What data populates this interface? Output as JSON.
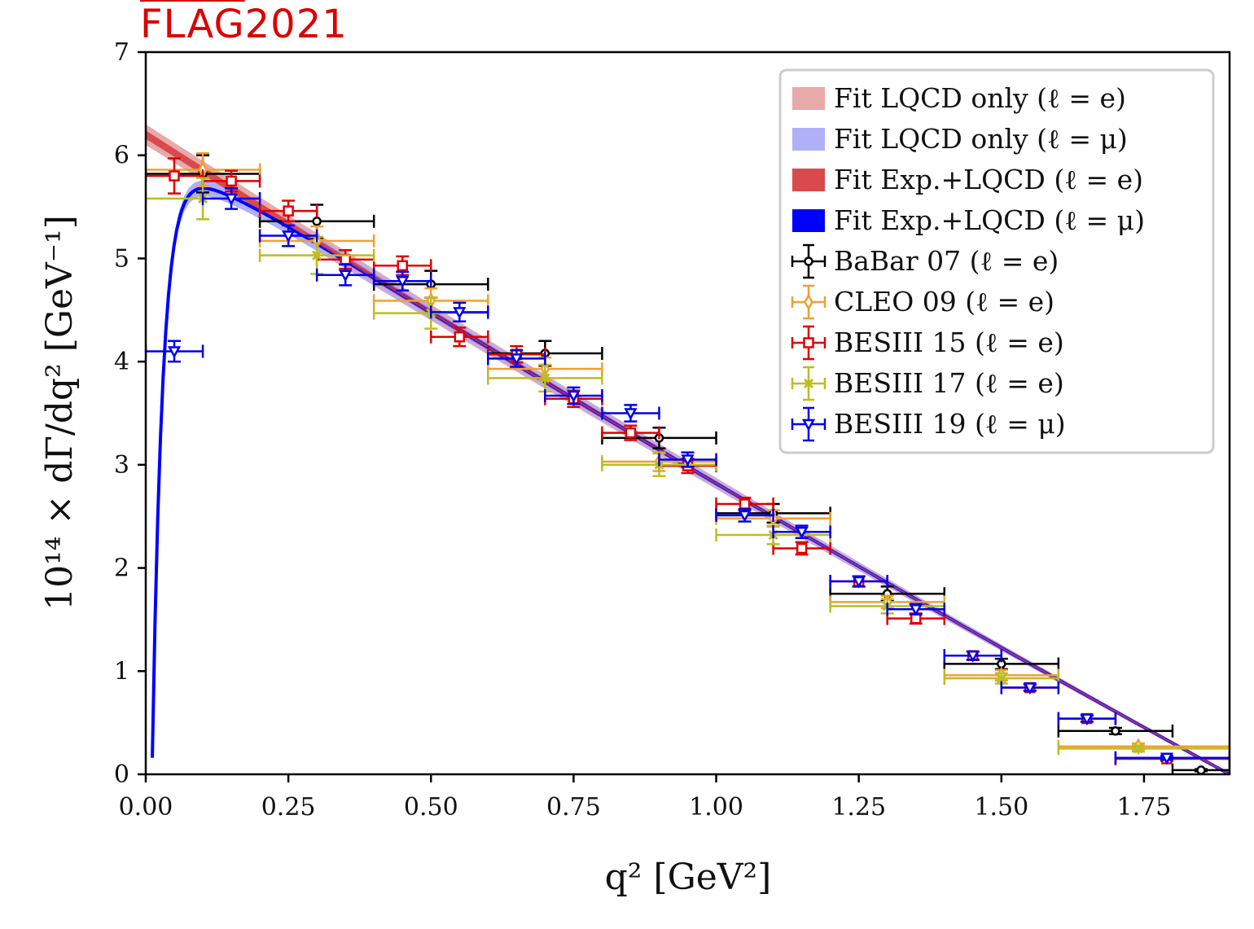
{
  "brand": {
    "name": "FLAG",
    "year": "2021",
    "color": "#dd0000"
  },
  "chart_data": {
    "type": "scatter",
    "title": "",
    "xlabel": "q² [GeV²]",
    "ylabel": "10¹⁴ × dΓ/dq² [GeV⁻¹]",
    "xlim": [
      0.0,
      1.9
    ],
    "ylim": [
      0,
      7
    ],
    "x_ticks": [
      0.0,
      0.25,
      0.5,
      0.75,
      1.0,
      1.25,
      1.5,
      1.75
    ],
    "x_tick_labels": [
      "0.00",
      "0.25",
      "0.50",
      "0.75",
      "1.00",
      "1.25",
      "1.50",
      "1.75"
    ],
    "y_ticks": [
      0,
      1,
      2,
      3,
      4,
      5,
      6,
      7
    ],
    "y_tick_labels": [
      "0",
      "1",
      "2",
      "3",
      "4",
      "5",
      "6",
      "7"
    ],
    "grid": false,
    "legend_position": "top-right",
    "bands": [
      {
        "name": "Fit LQCD only (ℓ = e)",
        "color": "#e8a9aa",
        "x": [
          0.0,
          1.9
        ],
        "y_center": [
          6.2,
          0.0
        ],
        "half_width": 0.1,
        "lepton": "e"
      },
      {
        "name": "Fit LQCD only (ℓ = μ)",
        "color": "#afb0f8",
        "lepton": "mu",
        "half_width": 0.08
      },
      {
        "name": "Fit Exp.+LQCD (ℓ = e)",
        "color": "#d94a4c",
        "x": [
          0.0,
          1.9
        ],
        "y_center": [
          6.2,
          0.0
        ],
        "half_width": 0.04,
        "lepton": "e"
      },
      {
        "name": "Fit Exp.+LQCD (ℓ = μ)",
        "color": "#0000ff",
        "lepton": "mu",
        "half_width": 0.025
      }
    ],
    "series": [
      {
        "name": "BaBar 07 (ℓ = e)",
        "color": "#000000",
        "marker": "circle",
        "points": [
          {
            "x": 0.1,
            "xlo": 0.0,
            "xhi": 0.2,
            "y": 5.82,
            "err": 0.18
          },
          {
            "x": 0.3,
            "xlo": 0.2,
            "xhi": 0.4,
            "y": 5.36,
            "err": 0.16
          },
          {
            "x": 0.5,
            "xlo": 0.4,
            "xhi": 0.6,
            "y": 4.75,
            "err": 0.13
          },
          {
            "x": 0.7,
            "xlo": 0.6,
            "xhi": 0.8,
            "y": 4.08,
            "err": 0.12
          },
          {
            "x": 0.9,
            "xlo": 0.8,
            "xhi": 1.0,
            "y": 3.26,
            "err": 0.1
          },
          {
            "x": 1.1,
            "xlo": 1.0,
            "xhi": 1.2,
            "y": 2.53,
            "err": 0.09
          },
          {
            "x": 1.3,
            "xlo": 1.2,
            "xhi": 1.4,
            "y": 1.75,
            "err": 0.07
          },
          {
            "x": 1.5,
            "xlo": 1.4,
            "xhi": 1.6,
            "y": 1.07,
            "err": 0.05
          },
          {
            "x": 1.7,
            "xlo": 1.6,
            "xhi": 1.8,
            "y": 0.42,
            "err": 0.03
          },
          {
            "x": 1.85,
            "xlo": 1.8,
            "xhi": 1.9,
            "y": 0.04,
            "err": 0.01
          }
        ]
      },
      {
        "name": "CLEO 09 (ℓ = e)",
        "color": "#f0a030",
        "marker": "diamond",
        "points": [
          {
            "x": 0.1,
            "xlo": 0.0,
            "xhi": 0.2,
            "y": 5.86,
            "err": 0.16
          },
          {
            "x": 0.3,
            "xlo": 0.2,
            "xhi": 0.4,
            "y": 5.17,
            "err": 0.14
          },
          {
            "x": 0.5,
            "xlo": 0.4,
            "xhi": 0.6,
            "y": 4.59,
            "err": 0.12
          },
          {
            "x": 0.7,
            "xlo": 0.6,
            "xhi": 0.8,
            "y": 3.93,
            "err": 0.11
          },
          {
            "x": 0.9,
            "xlo": 0.8,
            "xhi": 1.0,
            "y": 3.03,
            "err": 0.09
          },
          {
            "x": 1.1,
            "xlo": 1.0,
            "xhi": 1.2,
            "y": 2.48,
            "err": 0.08
          },
          {
            "x": 1.3,
            "xlo": 1.2,
            "xhi": 1.4,
            "y": 1.67,
            "err": 0.06
          },
          {
            "x": 1.5,
            "xlo": 1.4,
            "xhi": 1.6,
            "y": 0.96,
            "err": 0.05
          },
          {
            "x": 1.74,
            "xlo": 1.6,
            "xhi": 1.9,
            "y": 0.27,
            "err": 0.03
          }
        ]
      },
      {
        "name": "BESIII 15 (ℓ = e)",
        "color": "#e00000",
        "marker": "square",
        "points": [
          {
            "x": 0.05,
            "xlo": 0.0,
            "xhi": 0.1,
            "y": 5.8,
            "err": 0.17
          },
          {
            "x": 0.15,
            "xlo": 0.1,
            "xhi": 0.2,
            "y": 5.75,
            "err": 0.1
          },
          {
            "x": 0.25,
            "xlo": 0.2,
            "xhi": 0.3,
            "y": 5.46,
            "err": 0.1
          },
          {
            "x": 0.35,
            "xlo": 0.3,
            "xhi": 0.4,
            "y": 4.99,
            "err": 0.09
          },
          {
            "x": 0.45,
            "xlo": 0.4,
            "xhi": 0.5,
            "y": 4.93,
            "err": 0.09
          },
          {
            "x": 0.55,
            "xlo": 0.5,
            "xhi": 0.6,
            "y": 4.24,
            "err": 0.09
          },
          {
            "x": 0.65,
            "xlo": 0.6,
            "xhi": 0.7,
            "y": 4.07,
            "err": 0.08
          },
          {
            "x": 0.75,
            "xlo": 0.7,
            "xhi": 0.8,
            "y": 3.64,
            "err": 0.08
          },
          {
            "x": 0.85,
            "xlo": 0.8,
            "xhi": 0.9,
            "y": 3.31,
            "err": 0.07
          },
          {
            "x": 0.95,
            "xlo": 0.9,
            "xhi": 1.0,
            "y": 2.99,
            "err": 0.07
          },
          {
            "x": 1.05,
            "xlo": 1.0,
            "xhi": 1.1,
            "y": 2.62,
            "err": 0.06
          },
          {
            "x": 1.15,
            "xlo": 1.1,
            "xhi": 1.2,
            "y": 2.19,
            "err": 0.06
          },
          {
            "x": 1.25,
            "xlo": 1.2,
            "xhi": 1.3,
            "y": 1.87,
            "err": 0.05
          },
          {
            "x": 1.35,
            "xlo": 1.3,
            "xhi": 1.4,
            "y": 1.51,
            "err": 0.05
          },
          {
            "x": 1.45,
            "xlo": 1.4,
            "xhi": 1.5,
            "y": 1.15,
            "err": 0.04
          },
          {
            "x": 1.55,
            "xlo": 1.5,
            "xhi": 1.6,
            "y": 0.84,
            "err": 0.03
          },
          {
            "x": 1.65,
            "xlo": 1.6,
            "xhi": 1.7,
            "y": 0.54,
            "err": 0.03
          },
          {
            "x": 1.79,
            "xlo": 1.7,
            "xhi": 1.9,
            "y": 0.15,
            "err": 0.02
          }
        ]
      },
      {
        "name": "BESIII 17 (ℓ = e)",
        "color": "#bcbd22",
        "marker": "x",
        "points": [
          {
            "x": 0.1,
            "xlo": 0.0,
            "xhi": 0.2,
            "y": 5.58,
            "err": 0.2
          },
          {
            "x": 0.3,
            "xlo": 0.2,
            "xhi": 0.4,
            "y": 5.03,
            "err": 0.18
          },
          {
            "x": 0.5,
            "xlo": 0.4,
            "xhi": 0.6,
            "y": 4.47,
            "err": 0.15
          },
          {
            "x": 0.7,
            "xlo": 0.6,
            "xhi": 0.8,
            "y": 3.84,
            "err": 0.13
          },
          {
            "x": 0.9,
            "xlo": 0.8,
            "xhi": 1.0,
            "y": 3.0,
            "err": 0.11
          },
          {
            "x": 1.1,
            "xlo": 1.0,
            "xhi": 1.2,
            "y": 2.32,
            "err": 0.09
          },
          {
            "x": 1.3,
            "xlo": 1.2,
            "xhi": 1.4,
            "y": 1.63,
            "err": 0.07
          },
          {
            "x": 1.5,
            "xlo": 1.4,
            "xhi": 1.6,
            "y": 0.93,
            "err": 0.05
          },
          {
            "x": 1.74,
            "xlo": 1.6,
            "xhi": 1.9,
            "y": 0.25,
            "err": 0.03
          }
        ]
      },
      {
        "name": "BESIII 19 (ℓ = μ)",
        "color": "#0000ee",
        "marker": "triangle-down",
        "points": [
          {
            "x": 0.05,
            "xlo": 0.0,
            "xhi": 0.1,
            "y": 4.1,
            "err": 0.1
          },
          {
            "x": 0.15,
            "xlo": 0.1,
            "xhi": 0.2,
            "y": 5.58,
            "err": 0.1
          },
          {
            "x": 0.25,
            "xlo": 0.2,
            "xhi": 0.3,
            "y": 5.22,
            "err": 0.1
          },
          {
            "x": 0.35,
            "xlo": 0.3,
            "xhi": 0.4,
            "y": 4.84,
            "err": 0.1
          },
          {
            "x": 0.45,
            "xlo": 0.4,
            "xhi": 0.5,
            "y": 4.78,
            "err": 0.09
          },
          {
            "x": 0.55,
            "xlo": 0.5,
            "xhi": 0.6,
            "y": 4.48,
            "err": 0.09
          },
          {
            "x": 0.65,
            "xlo": 0.6,
            "xhi": 0.7,
            "y": 4.03,
            "err": 0.08
          },
          {
            "x": 0.75,
            "xlo": 0.7,
            "xhi": 0.8,
            "y": 3.67,
            "err": 0.08
          },
          {
            "x": 0.85,
            "xlo": 0.8,
            "xhi": 0.9,
            "y": 3.5,
            "err": 0.08
          },
          {
            "x": 0.95,
            "xlo": 0.9,
            "xhi": 1.0,
            "y": 3.05,
            "err": 0.07
          },
          {
            "x": 1.05,
            "xlo": 1.0,
            "xhi": 1.1,
            "y": 2.51,
            "err": 0.06
          },
          {
            "x": 1.15,
            "xlo": 1.1,
            "xhi": 1.2,
            "y": 2.35,
            "err": 0.06
          },
          {
            "x": 1.25,
            "xlo": 1.2,
            "xhi": 1.3,
            "y": 1.87,
            "err": 0.05
          },
          {
            "x": 1.35,
            "xlo": 1.3,
            "xhi": 1.4,
            "y": 1.6,
            "err": 0.05
          },
          {
            "x": 1.45,
            "xlo": 1.4,
            "xhi": 1.5,
            "y": 1.15,
            "err": 0.04
          },
          {
            "x": 1.55,
            "xlo": 1.5,
            "xhi": 1.6,
            "y": 0.84,
            "err": 0.03
          },
          {
            "x": 1.65,
            "xlo": 1.6,
            "xhi": 1.7,
            "y": 0.54,
            "err": 0.03
          },
          {
            "x": 1.79,
            "xlo": 1.7,
            "xhi": 1.9,
            "y": 0.16,
            "err": 0.02
          }
        ]
      }
    ],
    "muon_curve": {
      "description": "Fit curve for ℓ = μ rising from 0 near threshold q² ≈ 0.011, peaking ≈5.73 at q² ≈ 0.12, then following the e-fit line",
      "threshold": 0.011,
      "peak": {
        "x": 0.12,
        "y": 5.73
      }
    }
  }
}
